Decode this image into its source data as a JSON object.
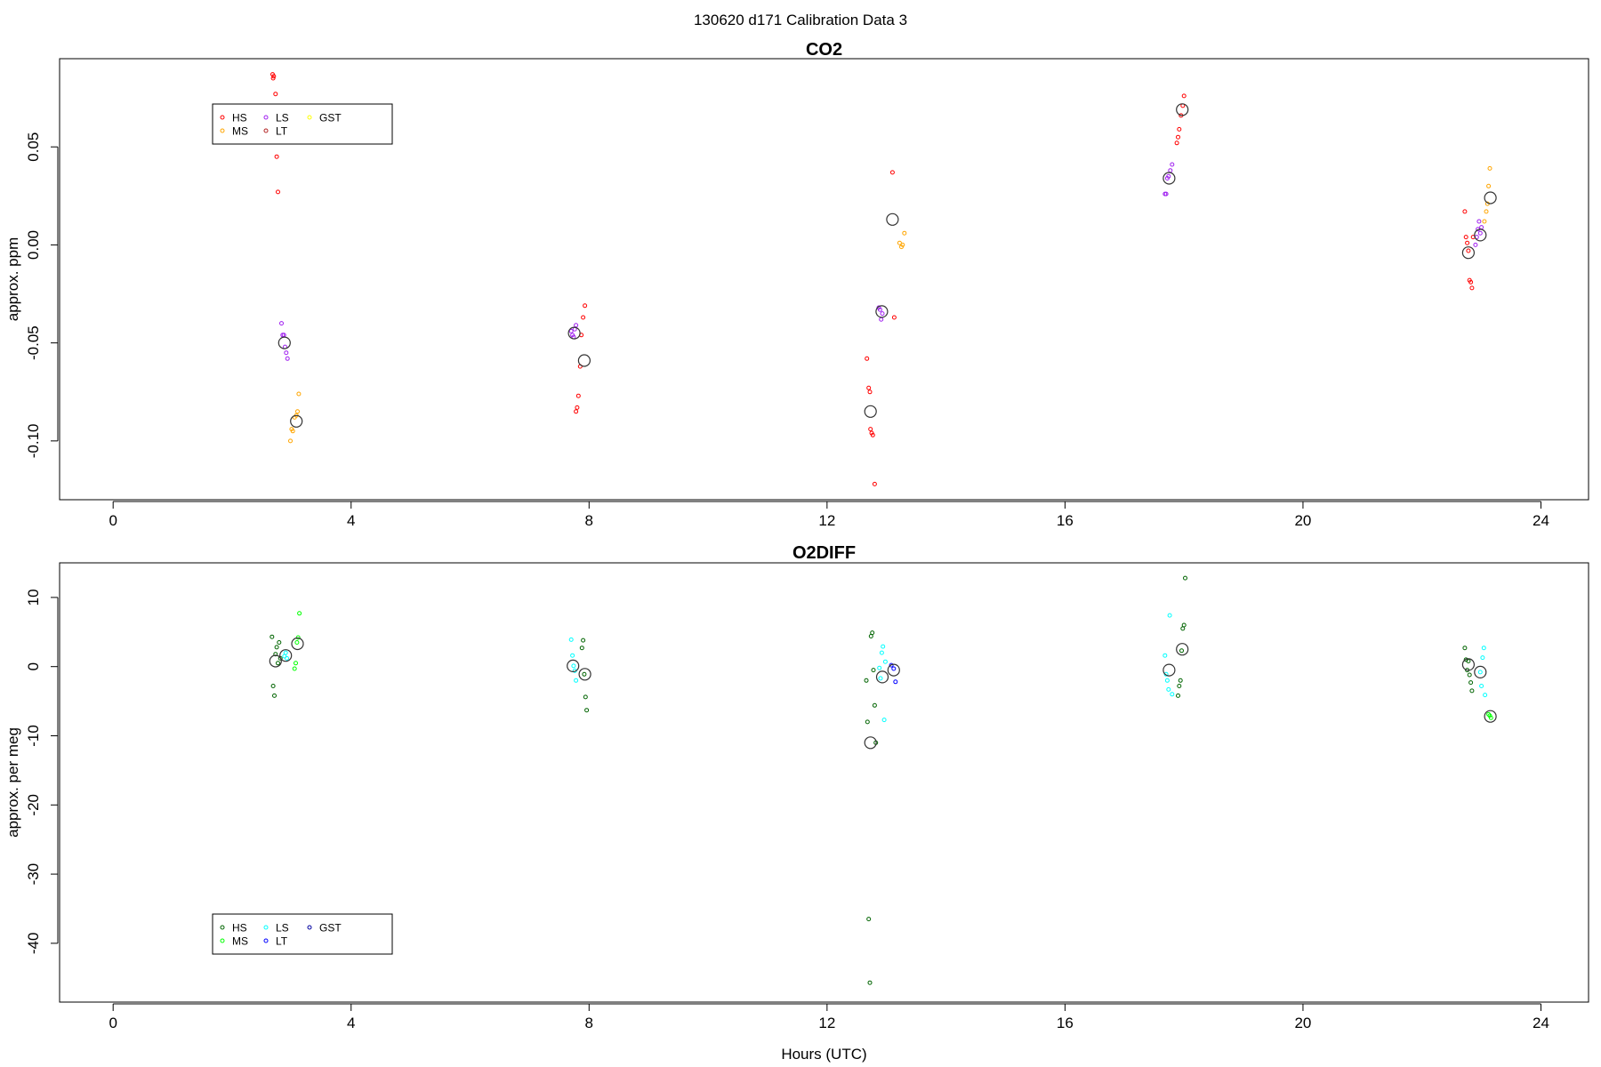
{
  "figure": {
    "title": "130620   d171   Calibration Data 3",
    "xlabel": "Hours (UTC)"
  },
  "chart_data": [
    {
      "type": "scatter",
      "title": "CO2",
      "xlabel": "",
      "ylabel": "approx. ppm",
      "xlim": [
        -0.9,
        24.8
      ],
      "ylim": [
        -0.13,
        0.095
      ],
      "xticks": [
        0,
        4,
        8,
        12,
        16,
        20,
        24
      ],
      "yticks": [
        -0.1,
        -0.05,
        0.0,
        0.05
      ],
      "ytick_labels": [
        "-0.10",
        "-0.05",
        "0.00",
        "0.05"
      ],
      "grid": false,
      "legend": {
        "placement": "top-left",
        "items": [
          {
            "label": "HS",
            "color": "#ff0000"
          },
          {
            "label": "MS",
            "color": "#ffa500"
          },
          {
            "label": "LS",
            "color": "#a020f0"
          },
          {
            "label": "LT",
            "color": "#b22222"
          },
          {
            "label": "GST",
            "color": "#ffff00"
          }
        ]
      },
      "series": [
        {
          "name": "HS",
          "color": "#ff0000",
          "x": [
            2.68,
            2.7,
            2.69,
            2.73,
            2.75,
            2.77,
            7.78,
            7.8,
            7.82,
            7.85,
            7.87,
            7.9,
            7.93,
            12.67,
            12.7,
            12.72,
            12.73,
            12.75,
            12.77,
            12.8,
            13.1,
            13.13,
            17.88,
            17.9,
            17.92,
            17.95,
            17.98,
            18.0,
            22.72,
            22.74,
            22.76,
            22.78,
            22.8,
            22.82,
            22.84,
            22.86
          ],
          "y": [
            0.087,
            0.086,
            0.085,
            0.077,
            0.045,
            0.027,
            -0.085,
            -0.083,
            -0.077,
            -0.062,
            -0.046,
            -0.037,
            -0.031,
            -0.058,
            -0.073,
            -0.075,
            -0.094,
            -0.096,
            -0.097,
            -0.122,
            0.037,
            -0.037,
            0.052,
            0.055,
            0.059,
            0.066,
            0.071,
            0.076,
            0.017,
            0.004,
            0.001,
            -0.003,
            -0.018,
            -0.019,
            -0.022,
            0.004
          ]
        },
        {
          "name": "MS",
          "color": "#ffa500",
          "x": [
            2.98,
            3.0,
            3.02,
            3.05,
            3.08,
            3.1,
            3.12,
            13.22,
            13.25,
            13.27,
            13.3,
            23.05,
            23.08,
            23.1,
            23.12,
            23.14
          ],
          "y": [
            -0.1,
            -0.094,
            -0.095,
            -0.088,
            -0.087,
            -0.085,
            -0.076,
            0.001,
            -0.001,
            0.0,
            0.006,
            0.012,
            0.017,
            0.021,
            0.03,
            0.039
          ]
        },
        {
          "name": "LS",
          "color": "#a020f0",
          "x": [
            2.83,
            2.85,
            2.87,
            2.89,
            2.91,
            2.93,
            7.7,
            7.72,
            7.74,
            7.76,
            7.78,
            12.87,
            12.89,
            12.91,
            12.93,
            17.68,
            17.7,
            17.72,
            17.74,
            17.77,
            17.8,
            22.9,
            22.92,
            22.94,
            22.96,
            22.98,
            23.0
          ],
          "y": [
            -0.04,
            -0.046,
            -0.046,
            -0.052,
            -0.055,
            -0.058,
            -0.044,
            -0.046,
            -0.047,
            -0.043,
            -0.041,
            -0.032,
            -0.033,
            -0.038,
            -0.035,
            0.026,
            0.026,
            0.034,
            0.035,
            0.038,
            0.041,
            0.0,
            0.004,
            0.008,
            0.012,
            0.006,
            0.009
          ]
        },
        {
          "name": "Mean",
          "color": "#333333",
          "marker": "large-circle",
          "x": [
            2.88,
            3.08,
            7.75,
            7.92,
            12.73,
            12.92,
            13.1,
            17.75,
            17.97,
            22.78,
            22.98,
            23.15
          ],
          "y": [
            -0.05,
            -0.09,
            -0.045,
            -0.059,
            -0.085,
            -0.034,
            0.013,
            0.034,
            0.069,
            -0.004,
            0.005,
            0.024
          ]
        }
      ]
    },
    {
      "type": "scatter",
      "title": "O2DIFF",
      "xlabel": "Hours (UTC)",
      "ylabel": "approx. per meg",
      "xlim": [
        -0.9,
        24.8
      ],
      "ylim": [
        -48.5,
        15.0
      ],
      "xticks": [
        0,
        4,
        8,
        12,
        16,
        20,
        24
      ],
      "yticks": [
        -40,
        -30,
        -20,
        -10,
        0,
        10
      ],
      "ytick_labels": [
        "-40",
        "-30",
        "-20",
        "-10",
        "0",
        "10"
      ],
      "grid": false,
      "legend": {
        "placement": "bottom-left",
        "items": [
          {
            "label": "HS",
            "color": "#006400"
          },
          {
            "label": "MS",
            "color": "#00ff00"
          },
          {
            "label": "LS",
            "color": "#00ffff"
          },
          {
            "label": "LT",
            "color": "#0000ff"
          },
          {
            "label": "GST",
            "color": "#0000a0"
          }
        ]
      },
      "series": [
        {
          "name": "HS",
          "color": "#006400",
          "x": [
            2.67,
            2.69,
            2.71,
            2.73,
            2.75,
            2.77,
            2.79,
            2.81,
            7.88,
            7.9,
            7.92,
            7.94,
            7.96,
            12.66,
            12.68,
            12.7,
            12.72,
            12.74,
            12.76,
            12.78,
            12.8,
            12.82,
            17.9,
            17.92,
            17.94,
            17.96,
            17.98,
            18.0,
            18.02,
            22.72,
            22.74,
            22.76,
            22.78,
            22.8,
            22.82,
            22.84
          ],
          "y": [
            4.3,
            -2.8,
            -4.2,
            1.8,
            2.8,
            0.5,
            3.5,
            1.2,
            2.7,
            3.8,
            -1.1,
            -4.4,
            -6.3,
            -2.0,
            -8.0,
            -36.5,
            -45.7,
            4.4,
            4.9,
            -0.5,
            -5.6,
            -11.0,
            -4.2,
            -2.8,
            -2.0,
            2.3,
            5.5,
            6.0,
            12.8,
            2.7,
            1.0,
            -0.5,
            0.8,
            -1.2,
            -2.3,
            -3.5
          ]
        },
        {
          "name": "MS",
          "color": "#00ff00",
          "x": [
            3.05,
            3.07,
            3.09,
            3.11,
            3.13,
            23.12,
            23.14,
            23.16
          ],
          "y": [
            -0.3,
            0.5,
            3.5,
            4.2,
            7.7,
            -6.9,
            -7.1,
            -7.4
          ]
        },
        {
          "name": "LS",
          "color": "#00ffff",
          "x": [
            2.88,
            2.9,
            2.92,
            7.7,
            7.72,
            7.74,
            7.76,
            7.78,
            12.88,
            12.9,
            12.92,
            12.94,
            12.96,
            12.98,
            17.68,
            17.7,
            17.72,
            17.74,
            17.76,
            17.8,
            22.98,
            23.0,
            23.02,
            23.04,
            23.06
          ],
          "y": [
            1.5,
            2.0,
            1.2,
            3.9,
            1.6,
            0.1,
            -0.6,
            -2.0,
            -0.2,
            -1.7,
            2.0,
            2.9,
            -7.7,
            0.7,
            1.6,
            -1.1,
            -2.0,
            -3.3,
            7.4,
            -4.0,
            -0.8,
            -2.8,
            1.3,
            2.7,
            -4.1
          ]
        },
        {
          "name": "LT",
          "color": "#0000ff",
          "x": [
            13.08,
            13.12,
            13.15
          ],
          "y": [
            0.2,
            -0.3,
            -2.2
          ]
        },
        {
          "name": "Mean",
          "color": "#333333",
          "marker": "large-circle",
          "x": [
            2.73,
            2.9,
            3.1,
            7.73,
            7.93,
            12.73,
            12.93,
            13.12,
            17.75,
            17.97,
            22.78,
            22.98,
            23.15
          ],
          "y": [
            0.8,
            1.6,
            3.3,
            0.1,
            -1.1,
            -11.0,
            -1.5,
            -0.5,
            -0.5,
            2.5,
            0.3,
            -0.8,
            -7.2
          ]
        }
      ]
    }
  ]
}
